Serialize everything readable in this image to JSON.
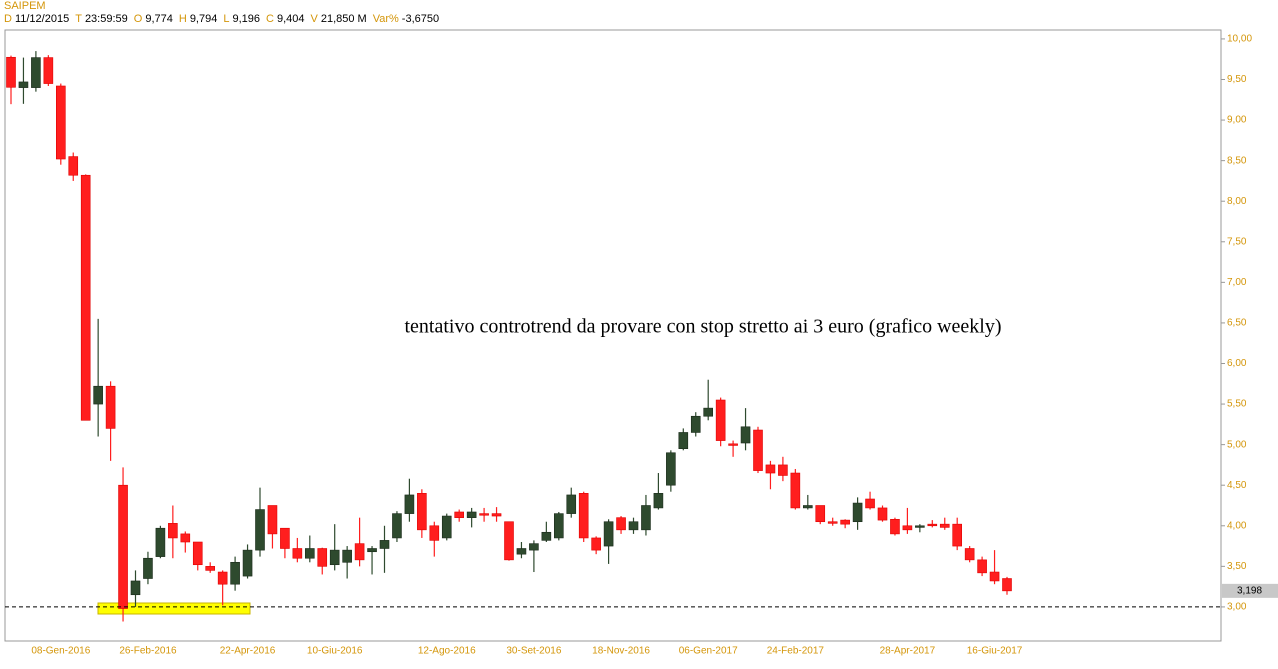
{
  "chart_data": {
    "type": "candlestick",
    "title": "SAIPEM",
    "info": [
      {
        "key": "D",
        "value": "11/12/2015"
      },
      {
        "key": "T",
        "value": "23:59:59"
      },
      {
        "key": "O",
        "value": "9,774"
      },
      {
        "key": "H",
        "value": "9,794"
      },
      {
        "key": "L",
        "value": "9,196"
      },
      {
        "key": "C",
        "value": "9,404"
      },
      {
        "key": "V",
        "value": "21,850 M"
      },
      {
        "key": "Var%",
        "value": "-3,6750"
      }
    ],
    "annotation": "tentativo controtrend da provare con stop stretto ai 3 euro (grafico weekly)",
    "categories": [
      null,
      null,
      null,
      null,
      "08-Gen-2016",
      null,
      null,
      null,
      null,
      null,
      null,
      "26-Feb-2016",
      null,
      null,
      null,
      null,
      null,
      null,
      null,
      "22-Apr-2016",
      null,
      null,
      null,
      null,
      null,
      null,
      "10-Giu-2016",
      null,
      null,
      null,
      null,
      null,
      null,
      null,
      null,
      "12-Ago-2016",
      null,
      null,
      null,
      null,
      null,
      null,
      "30-Set-2016",
      null,
      null,
      null,
      null,
      null,
      null,
      "18-Nov-2016",
      null,
      null,
      null,
      null,
      null,
      null,
      "06-Gen-2017",
      null,
      null,
      null,
      null,
      null,
      null,
      "24-Feb-2017",
      null,
      null,
      null,
      null,
      null,
      null,
      null,
      null,
      "28-Apr-2017",
      null,
      null,
      null,
      null,
      null,
      null,
      "16-Giu-2017",
      null
    ],
    "open": [
      9.774,
      9.4,
      9.4,
      9.77,
      9.42,
      8.55,
      8.32,
      5.5,
      5.72,
      4.5,
      3.15,
      3.35,
      3.62,
      4.03,
      3.9,
      3.8,
      3.5,
      3.43,
      3.28,
      3.38,
      3.7,
      4.25,
      3.97,
      3.72,
      3.6,
      3.72,
      3.52,
      3.55,
      3.78,
      3.68,
      3.72,
      3.85,
      4.15,
      4.4,
      4.0,
      3.85,
      4.17,
      4.1,
      4.15,
      4.15,
      4.05,
      3.65,
      3.7,
      3.82,
      3.85,
      4.15,
      4.4,
      3.85,
      3.75,
      4.1,
      3.95,
      3.95,
      4.22,
      4.5,
      4.95,
      5.15,
      5.35,
      5.55,
      5.01,
      5.02,
      5.18,
      4.75,
      4.75,
      4.65,
      4.22,
      4.25,
      4.05,
      4.07,
      4.05,
      4.33,
      4.22,
      4.08,
      4.0,
      3.98,
      4.02,
      4.02,
      4.02,
      3.72,
      3.58,
      3.43,
      3.35
    ],
    "high": [
      9.794,
      9.77,
      9.85,
      9.8,
      9.45,
      8.6,
      8.33,
      6.55,
      5.78,
      4.72,
      3.45,
      3.68,
      4.0,
      4.25,
      3.93,
      3.8,
      3.55,
      3.45,
      3.62,
      3.77,
      4.47,
      4.25,
      3.97,
      3.85,
      3.88,
      3.73,
      4.02,
      3.75,
      4.1,
      3.75,
      4.0,
      4.18,
      4.58,
      4.45,
      4.05,
      4.15,
      4.2,
      4.22,
      4.22,
      4.23,
      4.05,
      3.8,
      3.82,
      4.05,
      4.17,
      4.47,
      4.42,
      3.87,
      4.08,
      4.12,
      4.1,
      4.38,
      4.65,
      4.93,
      5.2,
      5.4,
      5.8,
      5.58,
      5.05,
      5.45,
      5.22,
      4.8,
      4.85,
      4.7,
      4.38,
      4.25,
      4.1,
      4.08,
      4.35,
      4.42,
      4.25,
      4.1,
      4.22,
      4.02,
      4.07,
      4.1,
      4.1,
      3.75,
      3.62,
      3.7,
      3.37
    ],
    "low": [
      9.196,
      9.2,
      9.35,
      9.42,
      8.45,
      8.25,
      5.3,
      5.1,
      4.8,
      2.82,
      3.0,
      3.28,
      3.6,
      3.6,
      3.67,
      3.45,
      3.42,
      3.02,
      3.2,
      3.35,
      3.62,
      3.72,
      3.6,
      3.55,
      3.55,
      3.4,
      3.45,
      3.35,
      3.5,
      3.4,
      3.42,
      3.8,
      4.05,
      3.85,
      3.62,
      3.82,
      4.05,
      3.98,
      4.05,
      4.05,
      3.57,
      3.6,
      3.43,
      3.8,
      3.82,
      4.1,
      3.8,
      3.65,
      3.53,
      3.9,
      3.9,
      3.88,
      4.2,
      4.42,
      4.93,
      5.1,
      5.3,
      4.98,
      4.85,
      4.93,
      4.65,
      4.45,
      4.55,
      4.2,
      4.2,
      4.02,
      4.0,
      3.97,
      3.95,
      4.2,
      4.05,
      3.88,
      3.9,
      3.92,
      3.98,
      3.95,
      3.7,
      3.55,
      3.38,
      3.28,
      3.15
    ],
    "close": [
      9.404,
      9.47,
      9.77,
      9.45,
      8.52,
      8.32,
      5.3,
      5.72,
      5.2,
      2.98,
      3.32,
      3.6,
      3.97,
      3.85,
      3.8,
      3.52,
      3.45,
      3.28,
      3.55,
      3.7,
      4.2,
      3.9,
      3.72,
      3.6,
      3.72,
      3.5,
      3.7,
      3.7,
      3.58,
      3.72,
      3.82,
      4.15,
      4.38,
      3.95,
      3.82,
      4.12,
      4.1,
      4.17,
      4.13,
      4.12,
      3.58,
      3.72,
      3.78,
      3.92,
      4.15,
      4.38,
      3.85,
      3.7,
      4.05,
      3.95,
      4.05,
      4.25,
      4.4,
      4.9,
      5.15,
      5.35,
      5.45,
      5.05,
      4.99,
      5.22,
      4.68,
      4.65,
      4.62,
      4.22,
      4.25,
      4.05,
      4.03,
      4.02,
      4.28,
      4.22,
      4.07,
      3.9,
      3.95,
      4.0,
      4.0,
      3.98,
      3.75,
      3.58,
      3.42,
      3.32,
      3.198
    ],
    "up_color": "#2e4a2e",
    "down_color": "#ff1e1e",
    "last_price": {
      "value": 3.198,
      "label": "3,198"
    },
    "support_level": 3,
    "ylim": [
      2.58,
      10.11
    ],
    "yticks": [
      {
        "value": 3,
        "label": "3,00"
      },
      {
        "value": 3.5,
        "label": "3,50"
      },
      {
        "value": 4,
        "label": "4,00"
      },
      {
        "value": 4.5,
        "label": "4,50"
      },
      {
        "value": 5,
        "label": "5,00"
      },
      {
        "value": 5.5,
        "label": "5,50"
      },
      {
        "value": 6,
        "label": "6,00"
      },
      {
        "value": 6.5,
        "label": "6,50"
      },
      {
        "value": 7,
        "label": "7,00"
      },
      {
        "value": 7.5,
        "label": "7,50"
      },
      {
        "value": 8,
        "label": "8,00"
      },
      {
        "value": 8.5,
        "label": "8,50"
      },
      {
        "value": 9,
        "label": "9,00"
      },
      {
        "value": 9.5,
        "label": "9,50"
      },
      {
        "value": 10,
        "label": "10,00"
      }
    ]
  }
}
